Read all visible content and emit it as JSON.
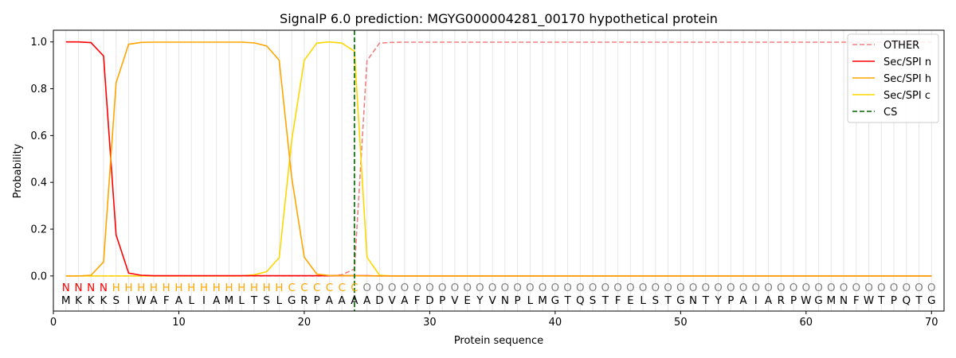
{
  "chart_data": {
    "type": "line",
    "title": "SignalP 6.0 prediction: MGYG000004281_00170 hypothetical protein",
    "xlabel": "Protein sequence",
    "ylabel": "Probability",
    "xlim": [
      0,
      71
    ],
    "ylim": [
      -0.15,
      1.05
    ],
    "xticks": [
      0,
      10,
      20,
      30,
      40,
      50,
      60,
      70
    ],
    "yticks": [
      0.0,
      0.2,
      0.4,
      0.6,
      0.8,
      1.0
    ],
    "ytick_labels": [
      "0.0",
      "0.2",
      "0.4",
      "0.6",
      "0.8",
      "1.0"
    ],
    "grid": "vertical lines at every residue",
    "legend_position": "top-right",
    "sequence": [
      "M",
      "K",
      "K",
      "K",
      "S",
      "I",
      "W",
      "A",
      "F",
      "A",
      "L",
      "I",
      "A",
      "M",
      "L",
      "T",
      "S",
      "L",
      "G",
      "R",
      "P",
      "A",
      "A",
      "A",
      "A",
      "D",
      "V",
      "A",
      "F",
      "D",
      "P",
      "V",
      "E",
      "Y",
      "V",
      "N",
      "P",
      "L",
      "M",
      "G",
      "T",
      "Q",
      "S",
      "T",
      "F",
      "E",
      "L",
      "S",
      "T",
      "G",
      "N",
      "T",
      "Y",
      "P",
      "A",
      "I",
      "A",
      "R",
      "P",
      "W",
      "G",
      "M",
      "N",
      "F",
      "W",
      "T",
      "P",
      "Q",
      "T",
      "G"
    ],
    "region_labels": [
      "N",
      "N",
      "N",
      "N",
      "H",
      "H",
      "H",
      "H",
      "H",
      "H",
      "H",
      "H",
      "H",
      "H",
      "H",
      "H",
      "H",
      "H",
      "C",
      "C",
      "C",
      "C",
      "C",
      "C",
      "O",
      "O",
      "O",
      "O",
      "O",
      "O",
      "O",
      "O",
      "O",
      "O",
      "O",
      "O",
      "O",
      "O",
      "O",
      "O",
      "O",
      "O",
      "O",
      "O",
      "O",
      "O",
      "O",
      "O",
      "O",
      "O",
      "O",
      "O",
      "O",
      "O",
      "O",
      "O",
      "O",
      "O",
      "O",
      "O",
      "O",
      "O",
      "O",
      "O",
      "O",
      "O",
      "O",
      "O",
      "O",
      "O"
    ],
    "region_colors": {
      "N": "#ff0000",
      "H": "#ffa500",
      "C": "#ffa500",
      "O": "#808080"
    },
    "cleavage_site": 24,
    "series": [
      {
        "name": "OTHER",
        "color": "#f08080",
        "dash": "dashed",
        "values": [
          0,
          0,
          0,
          0,
          0,
          0,
          0,
          0,
          0,
          0,
          0,
          0,
          0,
          0,
          0,
          0,
          0,
          0,
          0,
          0,
          0,
          0,
          0.005,
          0.03,
          0.92,
          0.995,
          0.998,
          0.999,
          0.999,
          0.999,
          0.999,
          0.999,
          0.999,
          0.999,
          0.999,
          0.999,
          0.999,
          0.999,
          0.999,
          0.999,
          0.999,
          0.999,
          0.999,
          0.999,
          0.999,
          0.999,
          0.999,
          0.999,
          0.999,
          0.999,
          0.999,
          0.999,
          0.999,
          0.999,
          0.999,
          0.999,
          0.999,
          0.999,
          0.999,
          0.999,
          0.999,
          0.999,
          0.999,
          0.999,
          0.999,
          0.999,
          0.999,
          0.999,
          0.999,
          0.999
        ]
      },
      {
        "name": "Sec/SPI n",
        "color": "#ff0000",
        "dash": "solid",
        "values": [
          1.0,
          1.0,
          0.997,
          0.94,
          0.175,
          0.012,
          0.003,
          0.001,
          0.001,
          0.001,
          0.001,
          0.001,
          0.001,
          0.001,
          0.001,
          0.001,
          0.001,
          0.001,
          0.001,
          0.001,
          0.001,
          0.001,
          0.001,
          0.001,
          0.001,
          0,
          0,
          0,
          0,
          0,
          0,
          0,
          0,
          0,
          0,
          0,
          0,
          0,
          0,
          0,
          0,
          0,
          0,
          0,
          0,
          0,
          0,
          0,
          0,
          0,
          0,
          0,
          0,
          0,
          0,
          0,
          0,
          0,
          0,
          0,
          0,
          0,
          0,
          0,
          0,
          0,
          0,
          0,
          0,
          0
        ]
      },
      {
        "name": "Sec/SPI h",
        "color": "#ffa500",
        "dash": "solid",
        "values": [
          0,
          0,
          0.003,
          0.06,
          0.825,
          0.99,
          0.998,
          0.999,
          0.999,
          0.999,
          0.999,
          0.999,
          0.999,
          0.999,
          0.999,
          0.996,
          0.983,
          0.922,
          0.42,
          0.08,
          0.008,
          0.002,
          0.001,
          0.001,
          0,
          0,
          0,
          0,
          0,
          0,
          0,
          0,
          0,
          0,
          0,
          0,
          0,
          0,
          0,
          0,
          0,
          0,
          0,
          0,
          0,
          0,
          0,
          0,
          0,
          0,
          0,
          0,
          0,
          0,
          0,
          0,
          0,
          0,
          0,
          0,
          0,
          0,
          0,
          0,
          0,
          0,
          0,
          0,
          0,
          0
        ]
      },
      {
        "name": "Sec/SPI c",
        "color": "#ffd700",
        "dash": "solid",
        "values": [
          0,
          0,
          0,
          0,
          0,
          0,
          0,
          0,
          0,
          0,
          0,
          0,
          0,
          0,
          0,
          0.005,
          0.018,
          0.078,
          0.58,
          0.922,
          0.995,
          1.0,
          0.995,
          0.96,
          0.08,
          0.003,
          0,
          0,
          0,
          0,
          0,
          0,
          0,
          0,
          0,
          0,
          0,
          0,
          0,
          0,
          0,
          0,
          0,
          0,
          0,
          0,
          0,
          0,
          0,
          0,
          0,
          0,
          0,
          0,
          0,
          0,
          0,
          0,
          0,
          0,
          0,
          0,
          0,
          0,
          0,
          0,
          0,
          0,
          0,
          0
        ]
      },
      {
        "name": "CS",
        "color": "#006400",
        "dash": "dashed",
        "values": []
      }
    ]
  }
}
